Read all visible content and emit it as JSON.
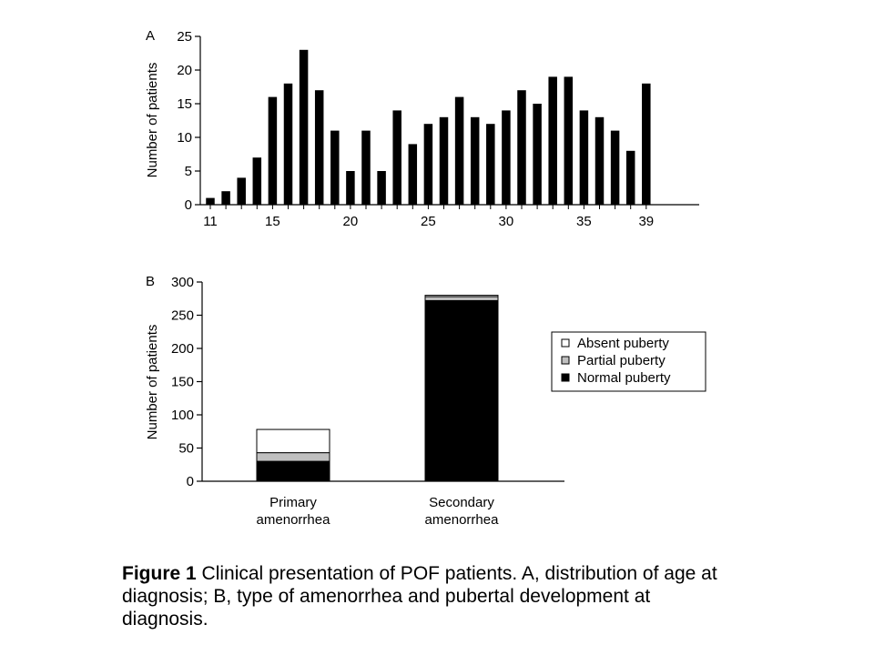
{
  "chart_data": [
    {
      "panel": "A",
      "type": "bar",
      "ylabel": "Number of patients",
      "xlabel": "",
      "x": [
        11,
        12,
        13,
        14,
        15,
        16,
        17,
        18,
        19,
        20,
        21,
        22,
        23,
        24,
        25,
        26,
        27,
        28,
        29,
        30,
        31,
        32,
        33,
        34,
        35,
        36,
        37,
        38,
        39
      ],
      "values": [
        1,
        2,
        4,
        7,
        16,
        18,
        23,
        17,
        11,
        5,
        11,
        5,
        14,
        9,
        12,
        13,
        16,
        13,
        12,
        14,
        17,
        15,
        19,
        19,
        14,
        13,
        11,
        8,
        18
      ],
      "x_tick_labels": [
        "11",
        "15",
        "20",
        "25",
        "30",
        "35",
        "39"
      ],
      "ylim": [
        0,
        25
      ],
      "yticks": [
        "0",
        "5",
        "10",
        "15",
        "20",
        "25"
      ],
      "bar_color": "#000000",
      "grid": false
    },
    {
      "panel": "B",
      "type": "bar",
      "stacked": true,
      "ylabel": "Number of patients",
      "categories": [
        [
          "Primary",
          "amenorrhea"
        ],
        [
          "Secondary",
          "amenorrhea"
        ]
      ],
      "series": [
        {
          "name": "Normal puberty",
          "color": "#000000",
          "values": [
            30,
            272
          ]
        },
        {
          "name": "Partial puberty",
          "color": "#c0c0c0",
          "values": [
            13,
            6
          ]
        },
        {
          "name": "Absent puberty",
          "color": "#ffffff",
          "values": [
            35,
            2
          ]
        }
      ],
      "legend_order": [
        "Absent puberty",
        "Partial puberty",
        "Normal puberty"
      ],
      "ylim": [
        0,
        300
      ],
      "yticks": [
        "0",
        "50",
        "100",
        "150",
        "200",
        "250",
        "300"
      ],
      "legend_position": "right",
      "grid": false
    }
  ],
  "caption": {
    "bold": "Figure 1",
    "text": " Clinical presentation of POF patients. A, distribution of age at diagnosis; B, type of amenorrhea and pubertal development at diagnosis."
  }
}
